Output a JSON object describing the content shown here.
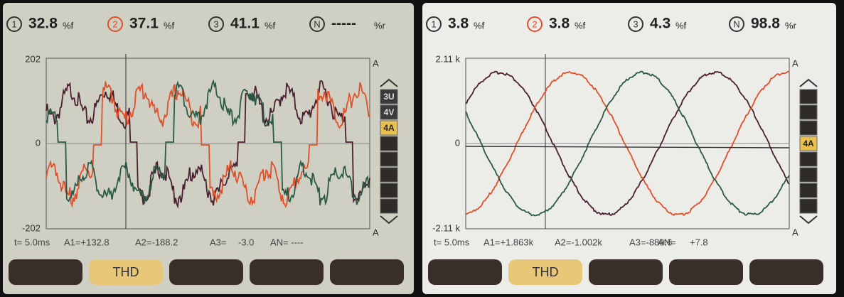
{
  "panels": [
    {
      "readings": [
        {
          "index": "1",
          "value": "32.8",
          "unit": "%f"
        },
        {
          "index": "2",
          "value": "37.1",
          "unit": "%f"
        },
        {
          "index": "3",
          "value": "41.1",
          "unit": "%f"
        },
        {
          "index": "N",
          "value": "-----",
          "unit": "%r"
        }
      ],
      "axis": {
        "top": "202",
        "zero": "0",
        "bottom": "-202",
        "unit": "A"
      },
      "side_buttons": [
        "3U",
        "4V",
        "4A"
      ],
      "footer": [
        "t= 5.0ms",
        "A1=+132.8",
        "A2=-188.2",
        "A3=",
        "-3.0",
        "AN= ----"
      ],
      "tab": "THD"
    },
    {
      "readings": [
        {
          "index": "1",
          "value": "3.8",
          "unit": "%f"
        },
        {
          "index": "2",
          "value": "3.8",
          "unit": "%f"
        },
        {
          "index": "3",
          "value": "4.3",
          "unit": "%f"
        },
        {
          "index": "N",
          "value": "98.8",
          "unit": "%r"
        }
      ],
      "axis": {
        "top": "2.11 k",
        "zero": "0",
        "bottom": "-2.11 k",
        "unit": "A"
      },
      "side_buttons": [
        "4A"
      ],
      "footer": [
        "t= 5.0ms",
        "A1=+1.863k",
        "A2=-1.002k",
        "A3=-889.6",
        "AN=",
        "+7.8"
      ],
      "tab": "THD"
    }
  ]
}
